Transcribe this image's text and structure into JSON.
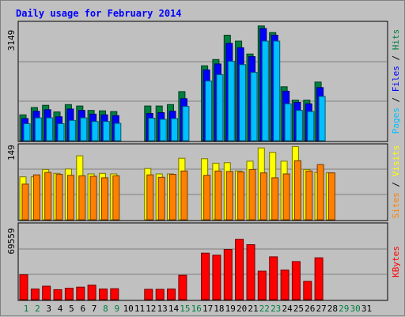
{
  "chart_data": [
    {
      "type": "bar",
      "title": "Daily usage for February 2014",
      "ymax_label": "3149",
      "ylabels": [
        {
          "text": "Pages",
          "color": "#00c0ff"
        },
        {
          "text": " / ",
          "color": "#000000"
        },
        {
          "text": "Files",
          "color": "#0000ff"
        },
        {
          "text": " / ",
          "color": "#000000"
        },
        {
          "text": "Hits",
          "color": "#008040"
        }
      ],
      "categories": [
        "1",
        "2",
        "3",
        "4",
        "5",
        "6",
        "7",
        "8",
        "9",
        "10",
        "11",
        "12",
        "13",
        "14",
        "15",
        "16",
        "17",
        "18",
        "19",
        "20",
        "21",
        "22",
        "23",
        "24",
        "25",
        "26",
        "27",
        "28",
        "29",
        "30",
        "31"
      ],
      "weekend_days": [
        "1",
        "2",
        "8",
        "9",
        "15",
        "16",
        "22",
        "23",
        "29",
        "30"
      ],
      "ylim": [
        0,
        3149
      ],
      "series": [
        {
          "name": "Hits",
          "color": "#008040",
          "values": [
            700,
            900,
            960,
            780,
            980,
            940,
            820,
            810,
            790,
            0,
            0,
            940,
            940,
            980,
            1330,
            0,
            2030,
            2200,
            2860,
            2700,
            2350,
            3110,
            2930,
            1460,
            1100,
            1100,
            1590,
            0,
            0,
            0,
            0
          ]
        },
        {
          "name": "Files",
          "color": "#0000ff",
          "values": [
            600,
            800,
            840,
            650,
            860,
            820,
            720,
            700,
            680,
            0,
            0,
            740,
            760,
            800,
            1140,
            0,
            1920,
            2080,
            2640,
            2520,
            2280,
            3040,
            2860,
            1340,
            1040,
            1000,
            1440,
            0,
            0,
            0,
            0
          ]
        },
        {
          "name": "Pages",
          "color": "#00c0ff",
          "values": [
            460,
            620,
            620,
            460,
            550,
            620,
            520,
            520,
            470,
            0,
            0,
            610,
            580,
            600,
            930,
            0,
            1620,
            1790,
            2150,
            2060,
            1850,
            2700,
            2700,
            1000,
            820,
            790,
            1200,
            0,
            0,
            0,
            0
          ]
        }
      ]
    },
    {
      "type": "bar",
      "ymax_label": "149",
      "ylabels": [
        {
          "text": "Sites",
          "color": "#ff8000"
        },
        {
          "text": " / ",
          "color": "#000000"
        },
        {
          "text": "Visits",
          "color": "#ffff00"
        }
      ],
      "categories": [
        "1",
        "2",
        "3",
        "4",
        "5",
        "6",
        "7",
        "8",
        "9",
        "10",
        "11",
        "12",
        "13",
        "14",
        "15",
        "16",
        "17",
        "18",
        "19",
        "20",
        "21",
        "22",
        "23",
        "24",
        "25",
        "26",
        "27",
        "28",
        "29",
        "30",
        "31"
      ],
      "ylim": [
        0,
        149
      ],
      "series": [
        {
          "name": "Visits",
          "color": "#ffff00",
          "values": [
            88,
            88,
            103,
            95,
            104,
            131,
            94,
            95,
            94,
            0,
            0,
            105,
            94,
            94,
            126,
            0,
            125,
            116,
            117,
            100,
            120,
            147,
            138,
            120,
            150,
            103,
            97,
            96,
            0,
            0,
            0
          ]
        },
        {
          "name": "Sites",
          "color": "#ff8000",
          "values": [
            73,
            92,
            97,
            93,
            91,
            90,
            89,
            86,
            90,
            0,
            0,
            92,
            87,
            93,
            100,
            0,
            91,
            100,
            99,
            98,
            103,
            96,
            86,
            94,
            121,
            100,
            113,
            96,
            0,
            0,
            0
          ]
        }
      ]
    },
    {
      "type": "bar",
      "ymax_label": "69559",
      "ylabels": [
        {
          "text": "KBytes",
          "color": "#ff0000"
        }
      ],
      "categories": [
        "1",
        "2",
        "3",
        "4",
        "5",
        "6",
        "7",
        "8",
        "9",
        "10",
        "11",
        "12",
        "13",
        "14",
        "15",
        "16",
        "17",
        "18",
        "19",
        "20",
        "21",
        "22",
        "23",
        "24",
        "25",
        "26",
        "27",
        "28",
        "29",
        "30",
        "31"
      ],
      "ylim": [
        0,
        69559
      ],
      "series": [
        {
          "name": "KBytes",
          "color": "#ff0000",
          "values": [
            23500,
            10000,
            12700,
            9400,
            10800,
            11800,
            13700,
            10000,
            10300,
            0,
            0,
            9700,
            9700,
            10000,
            23000,
            0,
            44000,
            42000,
            47500,
            57100,
            52000,
            26900,
            40500,
            28000,
            36000,
            17300,
            39600,
            0,
            0,
            0,
            0
          ]
        }
      ]
    }
  ]
}
